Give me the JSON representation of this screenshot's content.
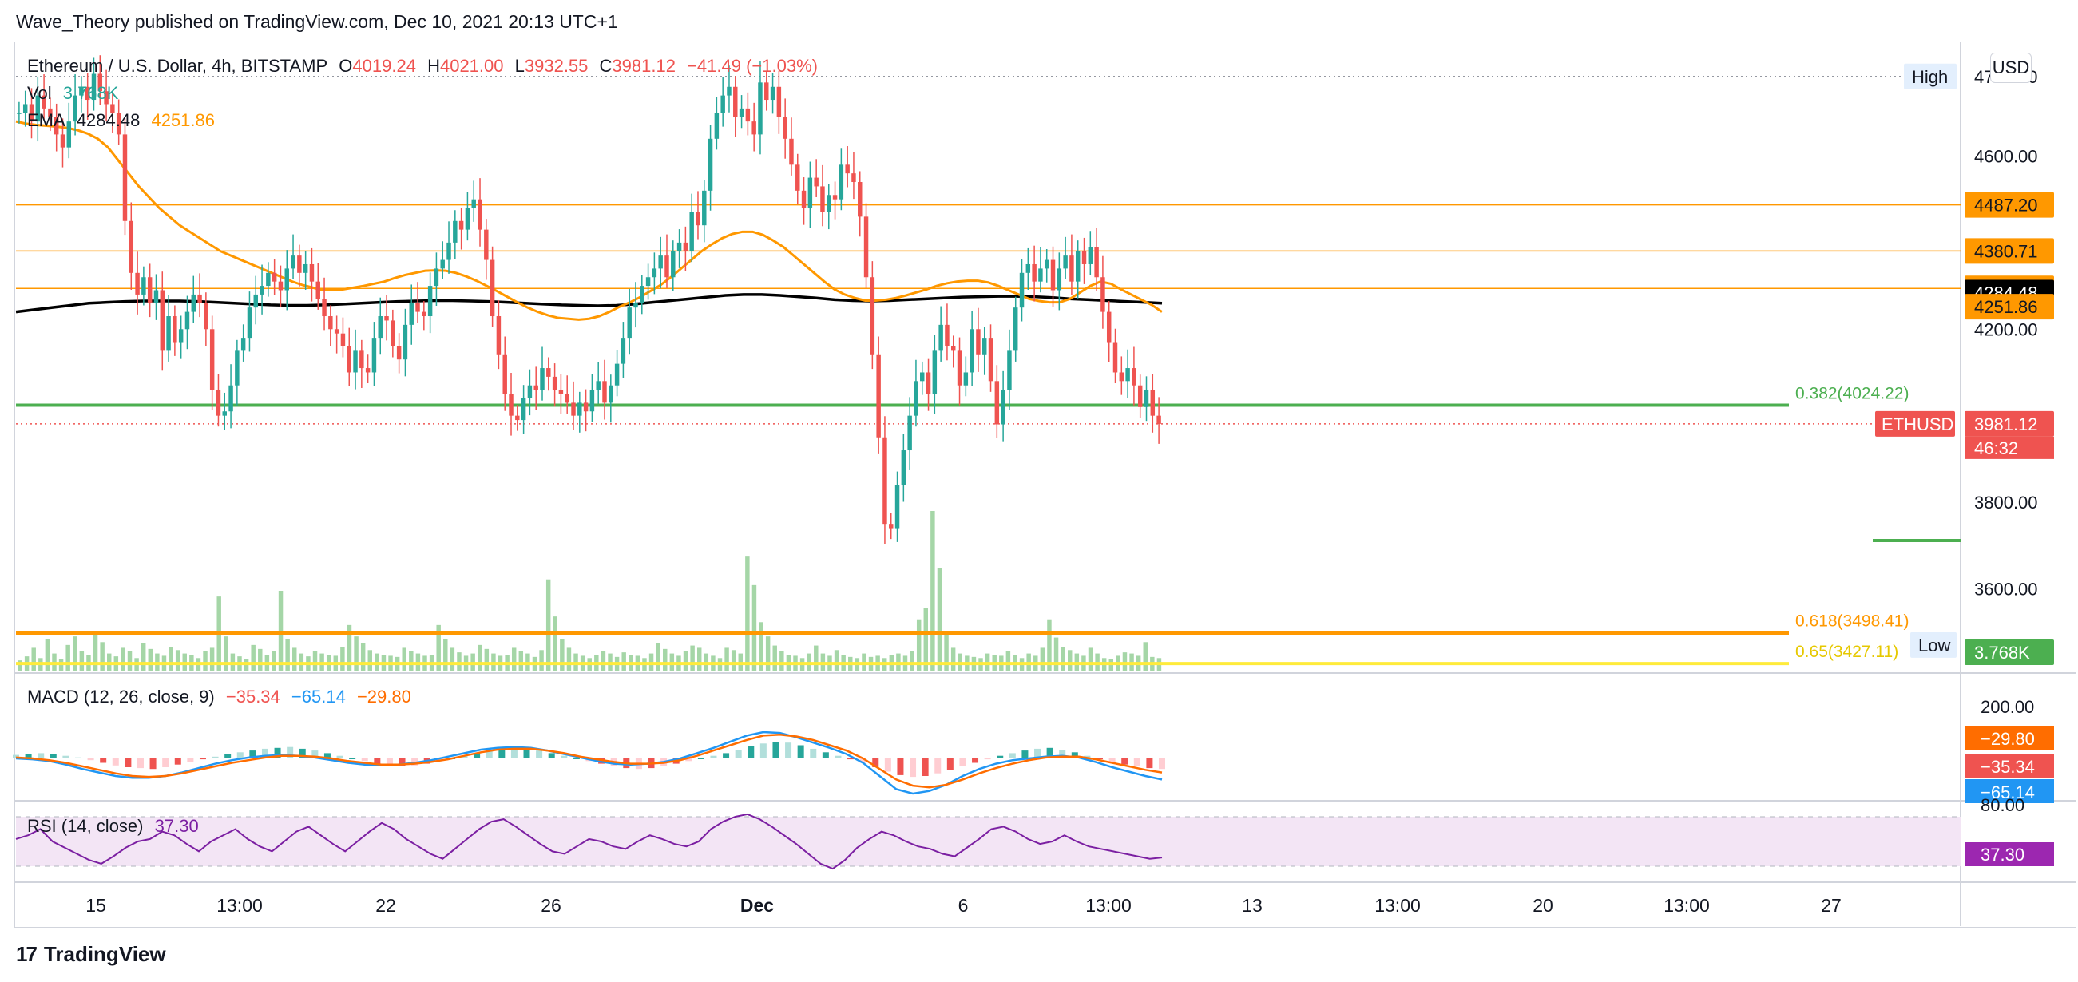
{
  "header": {
    "published_by": "Wave_Theory published on TradingView.com, Dec 10, 2021 20:13 UTC+1"
  },
  "legend": {
    "symbol": "Ethereum / U.S. Dollar, 4h, BITSTAMP",
    "open_label": "O",
    "open": "4019.24",
    "high_label": "H",
    "high": "4021.00",
    "low_label": "L",
    "low": "3932.55",
    "close_label": "C",
    "close": "3981.12",
    "change": "−41.49 (−1.03%)",
    "vol_label": "Vol",
    "vol": "3.768K",
    "ema_label": "EMA",
    "ema1": "4284.48",
    "ema2": "4251.86",
    "macd_label": "MACD (12, 26, close, 9)",
    "macd_v1": "−35.34",
    "macd_v2": "−65.14",
    "macd_v3": "−29.80",
    "rsi_label": "RSI (14, close)",
    "rsi_v": "37.30"
  },
  "currency_button": "USD",
  "footer": {
    "brand": "TradingView",
    "logo": "17"
  },
  "colors": {
    "up": "#26a69a",
    "down": "#ef5350",
    "up_vol": "#a5d6a7",
    "down_vol": "#a5d6a7",
    "ema_fast": "#ff9800",
    "ema_slow": "#000000",
    "support": "#4caf50",
    "fib618": "#ff9800",
    "fib65": "#ffeb3b",
    "resist": "#ff9800",
    "macd": "#2196f3",
    "signal": "#ff6d00",
    "rsi": "#7b1fa2",
    "rsi_band": "#f3e5f5"
  },
  "chart_data": {
    "type": "candlestick",
    "symbol": "ETHUSD",
    "interval": "4h",
    "ylim": [
      3420,
      4850
    ],
    "price_ticks": [
      "4784.00",
      "4600.00",
      "4487.20",
      "4380.71",
      "4294.11",
      "4284.48",
      "4251.86",
      "4200.00",
      "3981.12",
      "3800.00",
      "3600.00",
      "3470.02"
    ],
    "price_tick_values": [
      4784,
      4600,
      4487.2,
      4380.71,
      4294.11,
      4284.48,
      4251.86,
      4200,
      3981.12,
      3800,
      3600,
      3470.02
    ],
    "high_label": "High",
    "high_value": "4784.00",
    "low_label": "Low",
    "low_value": "3470.02",
    "last_label": "ETHUSD",
    "last_price": "3981.12",
    "countdown": "46:32",
    "vol_badge": "3.768K",
    "x_ticks": [
      "15",
      "13:00",
      "22",
      "26",
      "Dec",
      "6",
      "13:00",
      "13",
      "13:00",
      "20",
      "13:00",
      "27"
    ],
    "horizontal_levels": [
      {
        "price": 4487.2,
        "color": "#ff9800",
        "width": 1.5,
        "label": ""
      },
      {
        "price": 4380.71,
        "color": "#ff9800",
        "width": 1.5,
        "label": ""
      },
      {
        "price": 4294.11,
        "color": "#ff9800",
        "width": 1.5,
        "label": ""
      },
      {
        "price": 4024.22,
        "color": "#4caf50",
        "width": 4,
        "label": "0.382(4024.22)"
      },
      {
        "price": 3498.41,
        "color": "#ff9800",
        "width": 5,
        "label": "0.618(3498.41)"
      },
      {
        "price": 3427.11,
        "color": "#ffeb3b",
        "width": 4,
        "label": "0.65(3427.11)"
      }
    ],
    "closes": [
      4700,
      4720,
      4680,
      4740,
      4710,
      4690,
      4650,
      4620,
      4680,
      4740,
      4760,
      4730,
      4790,
      4750,
      4720,
      4700,
      4650,
      4450,
      4330,
      4280,
      4320,
      4260,
      4290,
      4150,
      4230,
      4170,
      4200,
      4240,
      4280,
      4260,
      4200,
      4060,
      4000,
      4010,
      4070,
      4150,
      4180,
      4250,
      4280,
      4300,
      4330,
      4310,
      4290,
      4340,
      4370,
      4330,
      4350,
      4310,
      4270,
      4230,
      4200,
      4190,
      4160,
      4100,
      4150,
      4110,
      4100,
      4180,
      4230,
      4220,
      4160,
      4130,
      4210,
      4260,
      4240,
      4230,
      4300,
      4340,
      4360,
      4400,
      4450,
      4430,
      4480,
      4500,
      4430,
      4360,
      4230,
      4140,
      4050,
      4000,
      3990,
      4040,
      4070,
      4060,
      4110,
      4090,
      4060,
      4050,
      4030,
      4000,
      4030,
      4010,
      4060,
      4080,
      4030,
      4070,
      4120,
      4180,
      4250,
      4260,
      4300,
      4320,
      4340,
      4370,
      4320,
      4380,
      4400,
      4380,
      4470,
      4440,
      4520,
      4640,
      4700,
      4740,
      4760,
      4690,
      4710,
      4680,
      4650,
      4770,
      4730,
      4760,
      4690,
      4640,
      4580,
      4520,
      4480,
      4550,
      4530,
      4470,
      4510,
      4500,
      4580,
      4560,
      4540,
      4460,
      4320,
      4140,
      3950,
      3750,
      3740,
      3840,
      3920,
      4000,
      4080,
      4100,
      4050,
      4150,
      4210,
      4160,
      4150,
      4070,
      4100,
      4200,
      4140,
      4180,
      4080,
      3980,
      4060,
      4150,
      4250,
      4330,
      4350,
      4310,
      4340,
      4360,
      4290,
      4340,
      4370,
      4310,
      4380,
      4350,
      4390,
      4320,
      4240,
      4170,
      4100,
      4080,
      4110,
      4070,
      4020,
      4060,
      4000,
      3981
    ],
    "ema50": [
      4680,
      4675,
      4672,
      4670,
      4668,
      4665,
      4660,
      4652,
      4640,
      4620,
      4590,
      4560,
      4530,
      4505,
      4480,
      4460,
      4440,
      4425,
      4410,
      4395,
      4380,
      4370,
      4360,
      4350,
      4340,
      4330,
      4320,
      4310,
      4302,
      4296,
      4290,
      4290,
      4292,
      4296,
      4300,
      4305,
      4310,
      4318,
      4325,
      4330,
      4335,
      4336,
      4335,
      4330,
      4322,
      4312,
      4300,
      4288,
      4275,
      4262,
      4250,
      4240,
      4232,
      4226,
      4224,
      4222,
      4224,
      4230,
      4240,
      4252,
      4262,
      4274,
      4288,
      4302,
      4320,
      4340,
      4360,
      4380,
      4396,
      4410,
      4420,
      4425,
      4425,
      4418,
      4405,
      4390,
      4370,
      4350,
      4330,
      4310,
      4292,
      4280,
      4272,
      4266,
      4266,
      4268,
      4272,
      4278,
      4285,
      4292,
      4300,
      4306,
      4310,
      4312,
      4312,
      4308,
      4300,
      4290,
      4280,
      4270,
      4265,
      4262,
      4262,
      4270,
      4285,
      4300,
      4310,
      4305,
      4292,
      4280,
      4268,
      4256,
      4240
    ],
    "ema200": [
      4240,
      4245,
      4250,
      4255,
      4260,
      4262,
      4264,
      4265,
      4265,
      4265,
      4264,
      4262,
      4260,
      4258,
      4256,
      4255,
      4255,
      4256,
      4258,
      4260,
      4262,
      4264,
      4265,
      4266,
      4266,
      4265,
      4264,
      4262,
      4260,
      4258,
      4256,
      4255,
      4254,
      4255,
      4258,
      4262,
      4266,
      4270,
      4274,
      4278,
      4280,
      4280,
      4278,
      4275,
      4272,
      4268,
      4266,
      4265,
      4266,
      4268,
      4270,
      4272,
      4274,
      4275,
      4276,
      4276,
      4275,
      4273,
      4270,
      4268,
      4266,
      4264,
      4262,
      4260
    ],
    "volumes": [
      18,
      25,
      40,
      22,
      55,
      30,
      20,
      45,
      60,
      35,
      28,
      70,
      50,
      30,
      25,
      40,
      35,
      22,
      48,
      38,
      30,
      26,
      42,
      36,
      30,
      28,
      22,
      34,
      40,
      130,
      60,
      30,
      25,
      20,
      45,
      38,
      28,
      35,
      140,
      55,
      40,
      30,
      25,
      35,
      30,
      28,
      26,
      42,
      80,
      60,
      48,
      36,
      30,
      28,
      26,
      24,
      40,
      35,
      30,
      26,
      28,
      80,
      55,
      40,
      32,
      26,
      30,
      45,
      38,
      30,
      26,
      28,
      40,
      34,
      30,
      24,
      36,
      160,
      95,
      55,
      40,
      30,
      26,
      22,
      28,
      34,
      30,
      24,
      32,
      28,
      26,
      22,
      30,
      48,
      38,
      30,
      26,
      34,
      44,
      40,
      30,
      26,
      22,
      40,
      36,
      30,
      200,
      150,
      85,
      60,
      44,
      34,
      28,
      26,
      22,
      30,
      44,
      30,
      26,
      36,
      28,
      24,
      22,
      30,
      24,
      26,
      22,
      28,
      30,
      26,
      34,
      90,
      110,
      280,
      180,
      70,
      40,
      30,
      26,
      24,
      22,
      30,
      28,
      26,
      34,
      28,
      22,
      30,
      26,
      40,
      90,
      58,
      42,
      36,
      30,
      26,
      40,
      30,
      22,
      20,
      26,
      32,
      30,
      26,
      50,
      24,
      22
    ],
    "macd_hist": [
      8,
      10,
      12,
      10,
      6,
      2,
      -4,
      -10,
      -16,
      -20,
      -22,
      -24,
      -20,
      -14,
      -8,
      -2,
      4,
      10,
      14,
      18,
      22,
      24,
      26,
      22,
      18,
      12,
      6,
      0,
      -6,
      -12,
      -16,
      -18,
      -16,
      -12,
      -6,
      0,
      6,
      12,
      18,
      22,
      24,
      22,
      18,
      12,
      6,
      0,
      -6,
      -12,
      -18,
      -22,
      -24,
      -22,
      -18,
      -12,
      -6,
      0,
      6,
      12,
      20,
      28,
      34,
      38,
      36,
      30,
      22,
      14,
      6,
      -2,
      -10,
      -20,
      -30,
      -38,
      -42,
      -40,
      -34,
      -26,
      -18,
      -10,
      -2,
      6,
      12,
      18,
      22,
      24,
      20,
      14,
      6,
      -2,
      -8,
      -14,
      -18,
      -22,
      -24
    ],
    "macd_line": [
      0,
      -2,
      -6,
      -14,
      -24,
      -32,
      -40,
      -44,
      -44,
      -40,
      -32,
      -22,
      -12,
      -4,
      2,
      6,
      8,
      6,
      2,
      -4,
      -10,
      -14,
      -16,
      -14,
      -10,
      -4,
      4,
      12,
      20,
      24,
      26,
      24,
      18,
      10,
      2,
      -6,
      -12,
      -14,
      -12,
      -8,
      0,
      12,
      24,
      38,
      52,
      60,
      58,
      48,
      36,
      24,
      10,
      -10,
      -40,
      -70,
      -80,
      -74,
      -60,
      -40,
      -24,
      -12,
      -4,
      0,
      4,
      6,
      2,
      -8,
      -20,
      -30,
      -40,
      -48
    ],
    "signal_line": [
      2,
      0,
      -4,
      -10,
      -18,
      -26,
      -34,
      -40,
      -42,
      -40,
      -34,
      -26,
      -18,
      -10,
      -4,
      2,
      6,
      6,
      4,
      0,
      -6,
      -10,
      -14,
      -14,
      -12,
      -8,
      -2,
      6,
      14,
      20,
      22,
      22,
      18,
      12,
      4,
      -2,
      -8,
      -12,
      -12,
      -10,
      -4,
      6,
      18,
      30,
      42,
      52,
      54,
      50,
      42,
      30,
      18,
      0,
      -24,
      -48,
      -62,
      -66,
      -60,
      -48,
      -34,
      -22,
      -12,
      -4,
      2,
      4,
      4,
      -2,
      -10,
      -18,
      -26,
      -32
    ],
    "rsi": [
      52,
      55,
      60,
      50,
      45,
      40,
      35,
      32,
      38,
      45,
      50,
      52,
      58,
      55,
      48,
      42,
      50,
      55,
      60,
      52,
      46,
      42,
      50,
      58,
      62,
      55,
      48,
      42,
      50,
      58,
      65,
      60,
      52,
      46,
      40,
      36,
      44,
      52,
      60,
      66,
      68,
      62,
      55,
      48,
      42,
      40,
      46,
      52,
      50,
      46,
      44,
      50,
      55,
      52,
      48,
      46,
      50,
      60,
      66,
      70,
      72,
      68,
      62,
      55,
      48,
      40,
      32,
      28,
      35,
      45,
      52,
      58,
      55,
      50,
      46,
      44,
      40,
      38,
      45,
      52,
      60,
      62,
      58,
      52,
      48,
      50,
      55,
      50,
      46,
      44,
      42,
      40,
      38,
      36,
      37
    ],
    "macd_axis": [
      "200.00",
      "−29.80",
      "−35.34",
      "−65.14",
      "80.00"
    ],
    "rsi_value": "37.30"
  }
}
